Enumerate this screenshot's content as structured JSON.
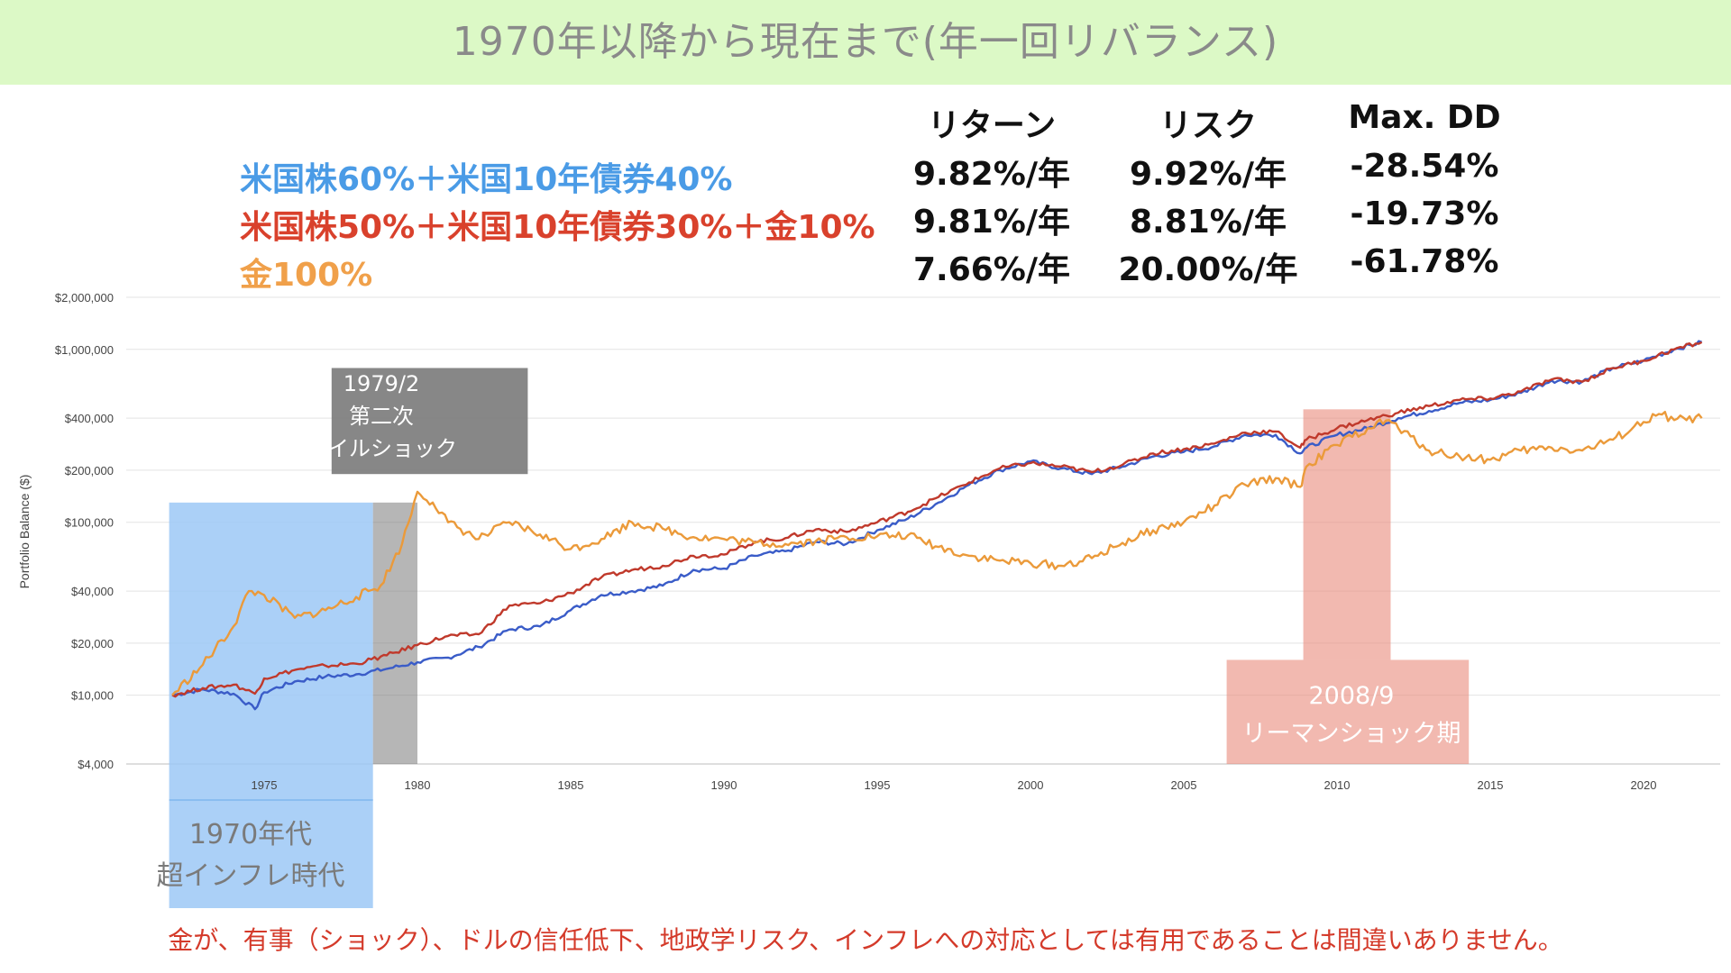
{
  "title": "1970年以降から現在まで(年一回リバランス)",
  "stats": {
    "headers": [
      "リターン",
      "リスク",
      "Max. DD"
    ],
    "rows": [
      [
        "9.82%/年",
        "9.92%/年",
        "-28.54%"
      ],
      [
        "9.81%/年",
        "8.81%/年",
        "-19.73%"
      ],
      [
        "7.66%/年",
        "20.00%/年",
        "-61.78%"
      ]
    ]
  },
  "legend": [
    {
      "label": "米国株60%＋米国10年債券40%",
      "color": "#4a9be6"
    },
    {
      "label": "米国株50%＋米国10年債券30%＋金10%",
      "color": "#d9412c"
    },
    {
      "label": "金100%",
      "color": "#f0a04a"
    }
  ],
  "annotations": {
    "oil_shock": [
      "1979/2",
      "第二次",
      "オイルショック"
    ],
    "inflation": [
      "1970年代",
      "超インフレ時代"
    ],
    "lehman": [
      "2008/9",
      "リーマンショック期"
    ]
  },
  "note": "金が、有事（ショック）、ドルの信任低下、地政学リスク、インフレへの対応としては有用であることは間違いありません。",
  "colors": {
    "title_bg": "#dcf9c6",
    "series_blue": "#3a5cc8",
    "series_red": "#c0392b",
    "series_orange": "#eb9a3a",
    "inflation_box": "#9cc8f6",
    "oil_box": "#7a7a7a",
    "lehman_box": "#e98a7c"
  },
  "chart_data": {
    "type": "line",
    "ylabel": "Portfolio Balance ($)",
    "yscale": "log",
    "ylim": [
      4000,
      2000000
    ],
    "yticks": [
      4000,
      10000,
      20000,
      40000,
      100000,
      200000,
      400000,
      1000000,
      2000000
    ],
    "ytick_labels": [
      "$4,000",
      "$10,000",
      "$20,000",
      "$40,000",
      "$100,000",
      "$200,000",
      "$400,000",
      "$1,000,000",
      "$2,000,000"
    ],
    "xlim": [
      1970.5,
      2022.5
    ],
    "xticks": [
      "1975",
      "1980",
      "1985",
      "1990",
      "1995",
      "2000",
      "2005",
      "2010",
      "2015",
      "2020"
    ],
    "grid": true,
    "series": [
      {
        "key": "blue",
        "x": [
          1972,
          1973,
          1974,
          1974.7,
          1975,
          1976,
          1977,
          1978,
          1979,
          1980,
          1981,
          1982,
          1983,
          1984,
          1985,
          1986,
          1987,
          1988,
          1989,
          1990,
          1991,
          1992,
          1993,
          1994,
          1995,
          1996,
          1997,
          1998,
          1999,
          2000,
          2001,
          2002,
          2003,
          2004,
          2005,
          2006,
          2007,
          2008,
          2008.8,
          2009,
          2010,
          2011,
          2012,
          2013,
          2014,
          2015,
          2016,
          2017,
          2018,
          2019,
          2020,
          2021,
          2021.9
        ],
        "values": [
          10000,
          10800,
          10200,
          8300,
          10400,
          12000,
          12800,
          13200,
          14200,
          15500,
          16500,
          19000,
          24000,
          25000,
          31000,
          38000,
          40000,
          43000,
          53000,
          54000,
          64000,
          68000,
          77000,
          75000,
          90000,
          105000,
          130000,
          165000,
          200000,
          225000,
          205000,
          190000,
          210000,
          240000,
          255000,
          275000,
          320000,
          320000,
          250000,
          270000,
          320000,
          350000,
          400000,
          440000,
          490000,
          510000,
          560000,
          660000,
          650000,
          780000,
          860000,
          1000000,
          1100000
        ]
      },
      {
        "key": "red",
        "x": [
          1972,
          1973,
          1974,
          1974.7,
          1975,
          1976,
          1977,
          1978,
          1979,
          1980,
          1981,
          1982,
          1983,
          1984,
          1985,
          1986,
          1987,
          1988,
          1989,
          1990,
          1991,
          1992,
          1993,
          1994,
          1995,
          1996,
          1997,
          1998,
          1999,
          2000,
          2001,
          2002,
          2003,
          2004,
          2005,
          2006,
          2007,
          2008,
          2008.8,
          2009,
          2010,
          2011,
          2012,
          2013,
          2014,
          2015,
          2016,
          2017,
          2018,
          2019,
          2020,
          2021,
          2021.9
        ],
        "values": [
          10000,
          11000,
          11500,
          10200,
          12500,
          14000,
          14800,
          15200,
          17000,
          19500,
          22000,
          22500,
          33000,
          34000,
          39000,
          48000,
          53000,
          56000,
          64000,
          65000,
          77000,
          81000,
          91000,
          88000,
          100000,
          115000,
          140000,
          170000,
          205000,
          220000,
          210000,
          195000,
          215000,
          250000,
          265000,
          285000,
          330000,
          335000,
          270000,
          300000,
          350000,
          390000,
          430000,
          470000,
          510000,
          520000,
          570000,
          670000,
          650000,
          780000,
          860000,
          1000000,
          1100000
        ]
      },
      {
        "key": "orange",
        "x": [
          1972,
          1973,
          1974,
          1974.5,
          1975,
          1976,
          1977,
          1978,
          1978.8,
          1979.5,
          1980,
          1980.5,
          1981,
          1982,
          1983,
          1984,
          1985,
          1986,
          1987,
          1988,
          1989,
          1990,
          1991,
          1992,
          1993,
          1994,
          1995,
          1996,
          1997,
          1998,
          1999,
          2000,
          2001,
          2002,
          2003,
          2004,
          2005,
          2006,
          2007,
          2008,
          2008.8,
          2009,
          2010,
          2011,
          2011.7,
          2012,
          2013,
          2014,
          2015,
          2016,
          2017,
          2018,
          2019,
          2020,
          2020.6,
          2021,
          2021.9
        ],
        "values": [
          10000,
          15000,
          25000,
          40000,
          38000,
          28000,
          31000,
          37000,
          43000,
          75000,
          150000,
          130000,
          100000,
          80000,
          100000,
          85000,
          70000,
          80000,
          100000,
          92000,
          82000,
          80000,
          76000,
          75000,
          78000,
          82000,
          83000,
          84000,
          72000,
          64000,
          60000,
          58000,
          56000,
          62000,
          76000,
          90000,
          100000,
          125000,
          165000,
          180000,
          160000,
          210000,
          280000,
          350000,
          390000,
          350000,
          260000,
          240000,
          230000,
          260000,
          270000,
          260000,
          300000,
          380000,
          420000,
          390000,
          400000
        ]
      }
    ]
  }
}
